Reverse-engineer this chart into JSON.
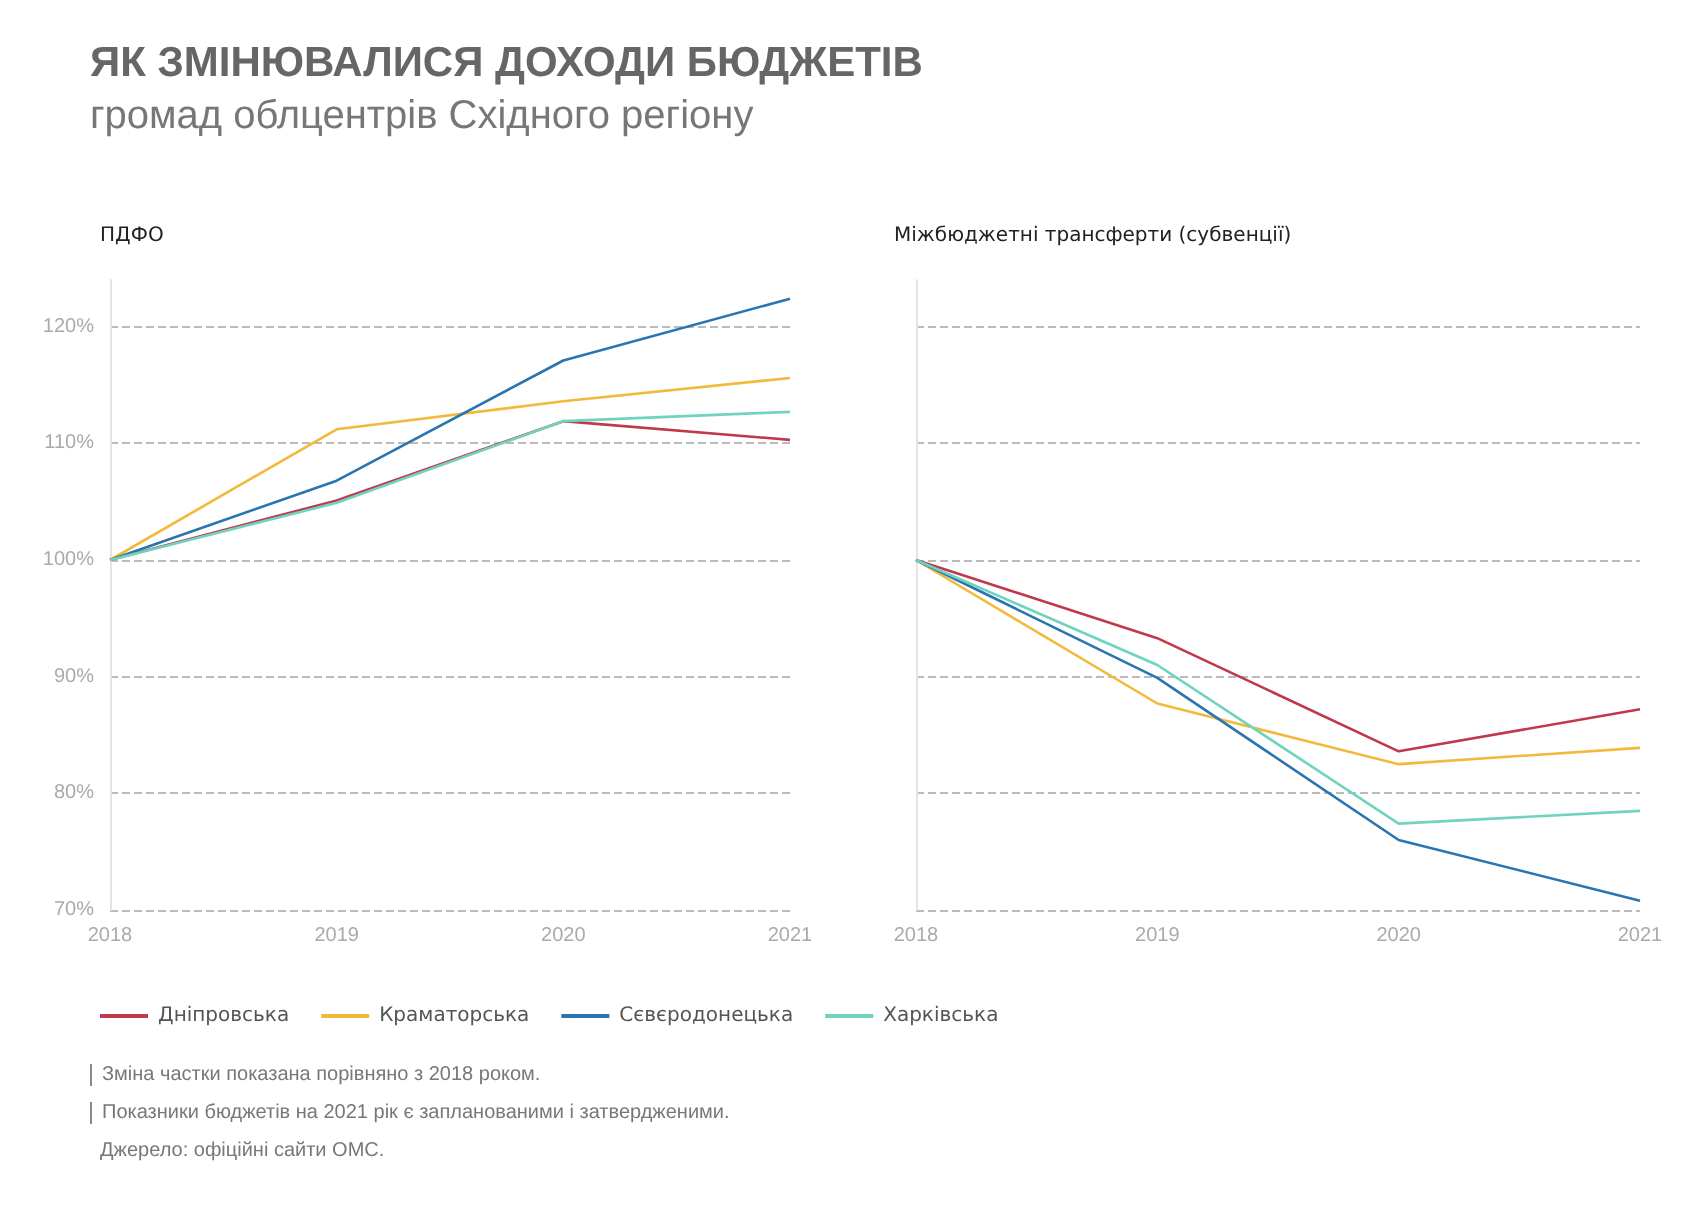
{
  "chart_data": [
    {
      "type": "other",
      "title": "ЯК ЗМІНЮВАЛИСЯ ДОХОДИ БЮДЖЕТІВ",
      "subtitle": "громад облцентрів Східного регіону",
      "annotations": [
        "Зміна частки показана порівняно з 2018 роком.",
        "Показники бюджетів на 2021 рік є запланованими і затвердженими.",
        "Джерело: офіційні сайти ОМС."
      ]
    },
    {
      "type": "line",
      "title": "ПДФО",
      "categories": [
        "2018",
        "2019",
        "2020",
        "2021"
      ],
      "series": [
        {
          "name": "Дніпровська",
          "color": "#c0394b",
          "values": [
            100,
            105.1,
            111.9,
            110.3
          ]
        },
        {
          "name": "Краматорська",
          "color": "#f2b93b",
          "values": [
            100,
            111.2,
            113.6,
            115.6
          ]
        },
        {
          "name": "Сєвєродонецька",
          "color": "#2a74b0",
          "values": [
            100,
            106.8,
            117.1,
            122.4
          ]
        },
        {
          "name": "Харківська",
          "color": "#6fd3bf",
          "values": [
            100,
            104.9,
            111.9,
            112.7
          ]
        }
      ],
      "ylim": [
        70,
        124
      ],
      "yticks": [
        {
          "value": 70,
          "label": "70%"
        },
        {
          "value": 80,
          "label": "80%"
        },
        {
          "value": 90,
          "label": "90%"
        },
        {
          "value": 100,
          "label": "100%"
        },
        {
          "value": 110,
          "label": "110%"
        },
        {
          "value": 120,
          "label": "120%"
        }
      ],
      "grid": "y",
      "legend": "bottom",
      "marker": "none",
      "line_style": "solid"
    },
    {
      "type": "line",
      "title": "Міжбюджетні трансферти (субвенції)",
      "categories": [
        "2018",
        "2019",
        "2020",
        "2021"
      ],
      "series": [
        {
          "color": "#c0394b",
          "values": [
            100,
            93.3,
            83.6,
            87.2
          ]
        },
        {
          "color": "#f2b93b",
          "values": [
            100,
            87.7,
            82.5,
            83.9
          ]
        },
        {
          "color": "#2a74b0",
          "values": [
            100,
            89.9,
            76.0,
            70.8
          ]
        },
        {
          "color": "#6fd3bf",
          "values": [
            100,
            91.0,
            77.4,
            78.5
          ]
        }
      ],
      "ylim": [
        70,
        124
      ],
      "grid": "y",
      "tick_labels": "x",
      "marker": "none",
      "line_style": "solid",
      "yticks": [
        70,
        80,
        90,
        100,
        110,
        120
      ]
    }
  ]
}
